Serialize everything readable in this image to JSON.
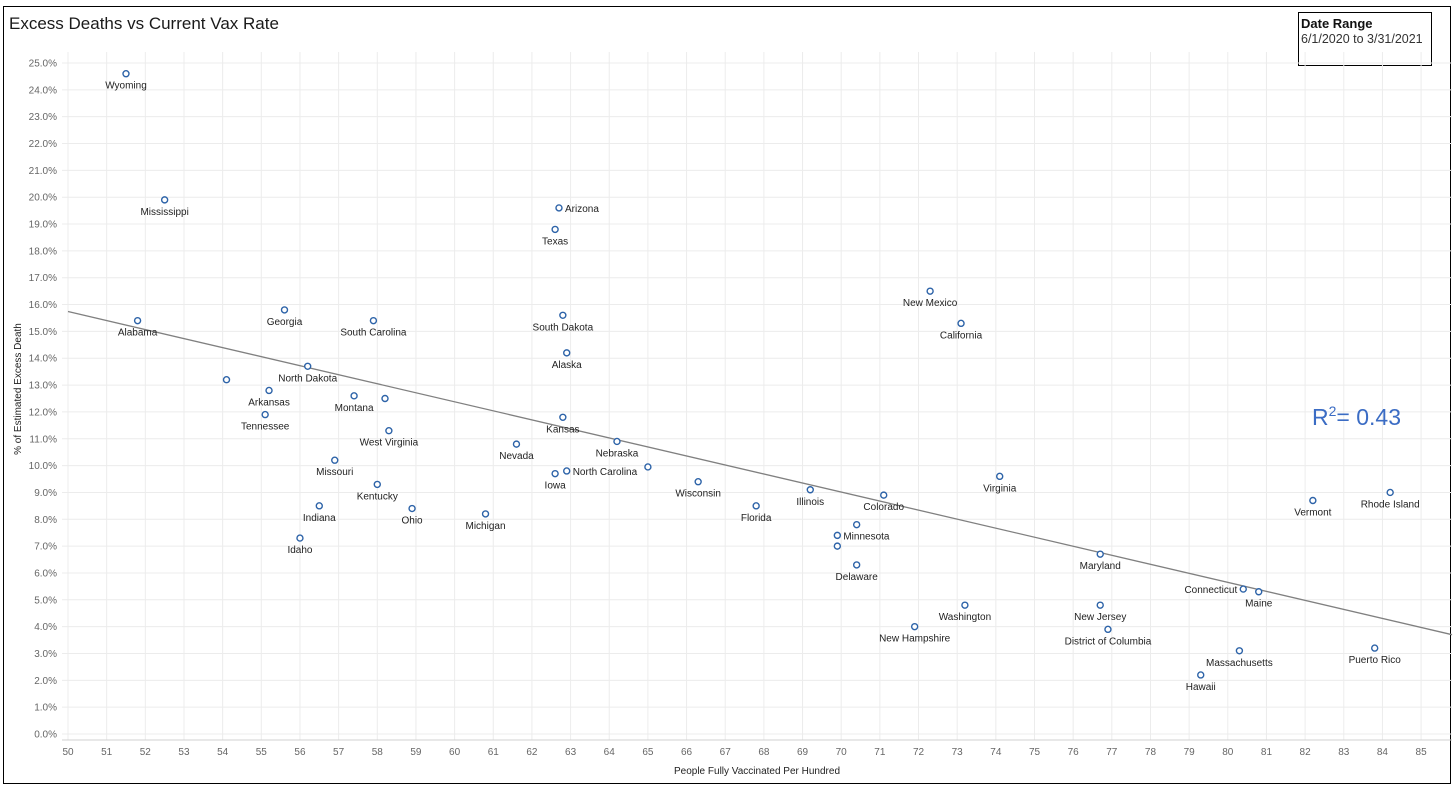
{
  "title": "Excess Deaths vs Current Vax Rate",
  "date_range": {
    "label": "Date Range",
    "value": "6/1/2020 to 3/31/2021"
  },
  "annotation": {
    "r2_prefix": "R",
    "r2_sup": "2",
    "r2_value": "= 0.43"
  },
  "colors": {
    "marker": "#2d63a8",
    "trend": "#808080",
    "grid": "#ececec",
    "axis": "#d0d0d0",
    "annotation": "#3b6cc4"
  },
  "chart_data": {
    "type": "scatter",
    "title": "Excess Deaths vs Current Vax Rate",
    "xlabel": "People Fully Vaccinated Per Hundred",
    "ylabel": "% of Estimated Excess Death",
    "xlim": [
      50,
      85.8
    ],
    "ylim": [
      0,
      25.6
    ],
    "x_ticks": [
      50,
      51,
      52,
      53,
      54,
      55,
      56,
      57,
      58,
      59,
      60,
      61,
      62,
      63,
      64,
      65,
      66,
      67,
      68,
      69,
      70,
      71,
      72,
      73,
      74,
      75,
      76,
      77,
      78,
      79,
      80,
      81,
      82,
      83,
      84,
      85
    ],
    "y_ticks": [
      0,
      1,
      2,
      3,
      4,
      5,
      6,
      7,
      8,
      9,
      10,
      11,
      12,
      13,
      14,
      15,
      16,
      17,
      18,
      19,
      20,
      21,
      22,
      23,
      24,
      25
    ],
    "y_tick_labels": [
      "0.0%",
      "1.0%",
      "2.0%",
      "3.0%",
      "4.0%",
      "5.0%",
      "6.0%",
      "7.0%",
      "8.0%",
      "9.0%",
      "10.0%",
      "11.0%",
      "12.0%",
      "13.0%",
      "14.0%",
      "15.0%",
      "16.0%",
      "17.0%",
      "18.0%",
      "19.0%",
      "20.0%",
      "21.0%",
      "22.0%",
      "23.0%",
      "24.0%",
      "25.0%"
    ],
    "grid": true,
    "trendline": {
      "x": [
        50,
        85.8
      ],
      "y": [
        15.74,
        3.7
      ]
    },
    "points": [
      {
        "label": "Wyoming",
        "x": 51.5,
        "y": 24.6
      },
      {
        "label": "Mississippi",
        "x": 52.5,
        "y": 19.9
      },
      {
        "label": "Alabama",
        "x": 51.8,
        "y": 15.4
      },
      {
        "label": "Arizona",
        "x": 62.7,
        "y": 19.6
      },
      {
        "label": "Texas",
        "x": 62.6,
        "y": 18.8
      },
      {
        "label": "Georgia",
        "x": 55.6,
        "y": 15.8
      },
      {
        "label": "South Carolina",
        "x": 57.9,
        "y": 15.4
      },
      {
        "label": "South Dakota",
        "x": 62.8,
        "y": 15.6
      },
      {
        "label": "Alaska",
        "x": 62.9,
        "y": 14.2
      },
      {
        "label": "New Mexico",
        "x": 72.3,
        "y": 16.5
      },
      {
        "label": "California",
        "x": 73.1,
        "y": 15.3
      },
      {
        "label": "",
        "x": 54.1,
        "y": 13.2
      },
      {
        "label": "North Dakota",
        "x": 56.2,
        "y": 13.7
      },
      {
        "label": "Arkansas",
        "x": 55.2,
        "y": 12.8
      },
      {
        "label": "Montana",
        "x": 57.4,
        "y": 12.6
      },
      {
        "label": "",
        "x": 58.2,
        "y": 12.5
      },
      {
        "label": "Tennessee",
        "x": 55.1,
        "y": 11.9
      },
      {
        "label": "West Virginia",
        "x": 58.3,
        "y": 11.3
      },
      {
        "label": "Kansas",
        "x": 62.8,
        "y": 11.8
      },
      {
        "label": "Nevada",
        "x": 61.6,
        "y": 10.8
      },
      {
        "label": "Nebraska",
        "x": 64.2,
        "y": 10.9
      },
      {
        "label": "Missouri",
        "x": 56.9,
        "y": 10.2
      },
      {
        "label": "North Carolina",
        "x": 62.9,
        "y": 9.8
      },
      {
        "label": "Iowa",
        "x": 62.6,
        "y": 9.7
      },
      {
        "label": "",
        "x": 65.0,
        "y": 9.95
      },
      {
        "label": "Wisconsin",
        "x": 66.3,
        "y": 9.4
      },
      {
        "label": "Virginia",
        "x": 74.1,
        "y": 9.6
      },
      {
        "label": "Kentucky",
        "x": 58.0,
        "y": 9.3
      },
      {
        "label": "Illinois",
        "x": 69.2,
        "y": 9.1
      },
      {
        "label": "Colorado",
        "x": 71.1,
        "y": 8.9
      },
      {
        "label": "Vermont",
        "x": 82.2,
        "y": 8.7
      },
      {
        "label": "Rhode Island",
        "x": 84.2,
        "y": 9.0
      },
      {
        "label": "Indiana",
        "x": 56.5,
        "y": 8.5
      },
      {
        "label": "Ohio",
        "x": 58.9,
        "y": 8.4
      },
      {
        "label": "Florida",
        "x": 67.8,
        "y": 8.5
      },
      {
        "label": "Michigan",
        "x": 60.8,
        "y": 8.2
      },
      {
        "label": "",
        "x": 70.4,
        "y": 7.8
      },
      {
        "label": "Minnesota",
        "x": 69.9,
        "y": 7.4
      },
      {
        "label": "Idaho",
        "x": 56.0,
        "y": 7.3
      },
      {
        "label": "",
        "x": 69.9,
        "y": 7.0
      },
      {
        "label": "Delaware",
        "x": 70.4,
        "y": 6.3
      },
      {
        "label": "Maryland",
        "x": 76.7,
        "y": 6.7
      },
      {
        "label": "Connecticut",
        "x": 80.4,
        "y": 5.4
      },
      {
        "label": "Maine",
        "x": 80.8,
        "y": 5.3
      },
      {
        "label": "Washington",
        "x": 73.2,
        "y": 4.8
      },
      {
        "label": "New Jersey",
        "x": 76.7,
        "y": 4.8
      },
      {
        "label": "New Hampshire",
        "x": 71.9,
        "y": 4.0
      },
      {
        "label": "District of Columbia",
        "x": 76.9,
        "y": 3.9
      },
      {
        "label": "Massachusetts",
        "x": 80.3,
        "y": 3.1
      },
      {
        "label": "Puerto Rico",
        "x": 83.8,
        "y": 3.2
      },
      {
        "label": "Hawaii",
        "x": 79.3,
        "y": 2.2
      }
    ]
  }
}
